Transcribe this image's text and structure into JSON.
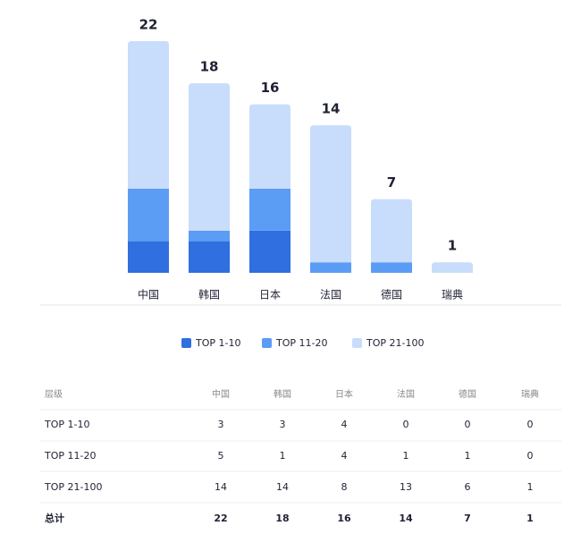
{
  "chart_data": {
    "type": "bar",
    "stacked": true,
    "categories": [
      "中国",
      "韩国",
      "日本",
      "法国",
      "德国",
      "瑞典"
    ],
    "series": [
      {
        "name": "TOP 1-10",
        "color": "#2f6fe0",
        "values": [
          3,
          3,
          4,
          0,
          0,
          0
        ]
      },
      {
        "name": "TOP 11-20",
        "color": "#5b9cf5",
        "values": [
          5,
          1,
          4,
          1,
          1,
          0
        ]
      },
      {
        "name": "TOP 21-100",
        "color": "#c8dcfb",
        "values": [
          14,
          14,
          8,
          13,
          6,
          1
        ]
      }
    ]
  },
  "table": {
    "header": [
      "层级",
      "中国",
      "韩国",
      "日本",
      "法国",
      "德国",
      "瑞典"
    ],
    "rows": [
      [
        "TOP 1-10",
        3,
        3,
        4,
        0,
        0,
        0
      ],
      [
        "TOP 11-20",
        5,
        1,
        4,
        1,
        1,
        0
      ],
      [
        "TOP 21-100",
        14,
        14,
        8,
        13,
        6,
        1
      ]
    ],
    "total_row": [
      "总计",
      22,
      18,
      16,
      14,
      7,
      1
    ]
  }
}
